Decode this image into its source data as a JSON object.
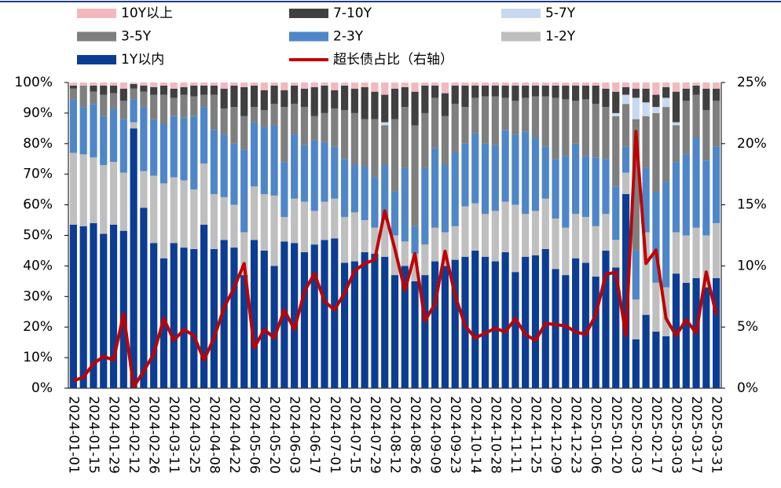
{
  "chart_data": {
    "type": "bar",
    "stacked": true,
    "categories": [
      "2024-01-01",
      null,
      "2024-01-15",
      null,
      "2024-01-29",
      null,
      "2024-02-12",
      null,
      "2024-02-26",
      null,
      "2024-03-11",
      null,
      "2024-03-25",
      null,
      "2024-04-08",
      null,
      "2024-04-22",
      null,
      "2024-05-06",
      null,
      "2024-05-20",
      null,
      "2024-06-03",
      null,
      "2024-06-17",
      null,
      "2024-07-01",
      null,
      "2024-07-15",
      null,
      "2024-07-29",
      null,
      "2024-08-12",
      null,
      "2024-08-26",
      null,
      "2024-09-09",
      null,
      "2024-09-23",
      null,
      "2024-10-14",
      null,
      "2024-10-28",
      null,
      "2024-11-11",
      null,
      "2024-11-25",
      null,
      "2024-12-09",
      null,
      "2024-12-23",
      null,
      "2025-01-06",
      null,
      "2025-01-20",
      null,
      "2025-02-03",
      null,
      "2025-02-17",
      null,
      "2025-03-03",
      null,
      "2025-03-17",
      null,
      "2025-03-31"
    ],
    "series": [
      {
        "name": "1Y以内",
        "color": "#0d3d92",
        "values": [
          53.5,
          53,
          54,
          50.5,
          53.5,
          51.5,
          85,
          59,
          47.5,
          42.5,
          47.5,
          46,
          45.5,
          53.5,
          45.5,
          48.5,
          46,
          37,
          48.5,
          45,
          40,
          48,
          47.5,
          44.5,
          47,
          48.5,
          49,
          41,
          41.5,
          44.5,
          44,
          43,
          37,
          40,
          35,
          37,
          41.5,
          40,
          42,
          43,
          45,
          43,
          41.5,
          44.5,
          38,
          43,
          43.5,
          45.5,
          39,
          37,
          42.5,
          41,
          36.5,
          45,
          39.5,
          63.5,
          16,
          24,
          18.5,
          17,
          37.5,
          34.5,
          36,
          33,
          36
        ]
      },
      {
        "name": "1-2Y",
        "color": "#bfbfbf",
        "values": [
          23.5,
          23.5,
          21.5,
          22.5,
          20.5,
          19,
          2,
          12,
          22,
          24.5,
          21.5,
          22,
          19.5,
          20,
          18,
          14,
          14,
          14,
          17.5,
          18.5,
          23,
          8,
          14.5,
          16.5,
          11,
          12.5,
          13,
          15,
          16,
          10.5,
          8.5,
          12,
          13,
          8,
          9,
          10,
          11,
          11,
          11,
          16.5,
          15.5,
          14,
          16.5,
          16.5,
          22,
          14,
          14.5,
          16.5,
          16.5,
          15.5,
          14.5,
          15,
          16.5,
          12,
          9,
          7,
          13,
          27,
          16,
          16,
          13.5,
          15.5,
          16.5,
          17,
          18
        ]
      },
      {
        "name": "2-3Y",
        "color": "#4f86c8",
        "values": [
          17.5,
          15.5,
          17.5,
          16,
          17.5,
          17.5,
          7.5,
          21,
          18.5,
          19.5,
          20,
          20.5,
          24,
          18.5,
          21,
          20.5,
          20,
          27,
          21,
          22,
          23,
          18,
          21,
          18.5,
          23,
          19.5,
          17,
          19,
          15.5,
          17.5,
          16.5,
          18,
          14.5,
          24,
          9,
          25,
          26,
          22,
          24,
          20.5,
          23,
          23,
          21.5,
          23.5,
          23,
          27,
          24,
          17,
          19.5,
          23.5,
          23,
          20,
          22.5,
          18,
          17.5,
          8.5,
          16,
          21,
          29.5,
          34.5,
          23,
          26.5,
          29.5,
          24.5,
          25
        ]
      },
      {
        "name": "3-5Y",
        "color": "#7f7f7f",
        "values": [
          3.5,
          7,
          4,
          7,
          5,
          6,
          3.5,
          5,
          8,
          9.5,
          6,
          7.5,
          6.5,
          4,
          11.5,
          8.5,
          12,
          11,
          5,
          5.5,
          7,
          18,
          10,
          12.5,
          8,
          9.5,
          12.5,
          16,
          17,
          15.5,
          19,
          13,
          23.5,
          20,
          33,
          18,
          16.5,
          16,
          16,
          12,
          11.5,
          15.5,
          16,
          10.5,
          11,
          11,
          13.5,
          16.5,
          20,
          18.5,
          14,
          18.5,
          17.5,
          17,
          23,
          14,
          43,
          17,
          26,
          24.5,
          12,
          17.5,
          14,
          16.5,
          15
        ]
      },
      {
        "name": "5-7Y",
        "color": "#c6d9f1",
        "values": [
          0,
          0,
          0,
          0,
          0,
          0,
          0,
          0,
          0,
          0,
          0,
          0,
          0,
          0,
          0,
          0,
          0,
          0,
          0,
          0,
          0,
          0,
          0,
          0,
          0,
          0,
          0,
          0,
          0,
          0,
          0,
          1,
          0,
          0,
          0,
          0,
          0,
          0,
          0,
          0,
          0,
          0,
          0,
          0,
          0,
          0,
          0,
          0,
          0,
          0,
          0,
          0,
          0,
          0,
          1,
          3,
          7,
          4.5,
          2,
          3,
          1,
          0,
          0,
          0,
          0
        ]
      },
      {
        "name": "7-10Y",
        "color": "#404040",
        "values": [
          1,
          0,
          2,
          3,
          2.5,
          4,
          1.5,
          2,
          2.5,
          3,
          3,
          2.5,
          3.5,
          3,
          3,
          6.5,
          7,
          9.5,
          7,
          6.5,
          6,
          5.5,
          6,
          6,
          9.5,
          9,
          6,
          8,
          8,
          10.5,
          9,
          9,
          10,
          6.5,
          11,
          9,
          4,
          7.5,
          6,
          7,
          4,
          3.5,
          3.5,
          4,
          5,
          4,
          3.5,
          3.5,
          4,
          4.5,
          5,
          4.5,
          6,
          6,
          7,
          2.5,
          3,
          4.5,
          4,
          3.5,
          10,
          4,
          3,
          7,
          4
        ]
      },
      {
        "name": "10Y以上",
        "color": "#f2b8bd",
        "values": [
          1,
          1,
          1,
          1,
          1,
          2,
          0.5,
          1,
          1.5,
          1,
          2,
          1.5,
          1,
          1,
          1,
          2,
          1,
          1.5,
          1,
          2.5,
          1,
          2.5,
          1,
          2,
          1.5,
          1,
          2.5,
          1,
          2,
          1.5,
          3,
          4,
          2,
          1.5,
          3,
          1,
          1,
          3.5,
          1,
          1,
          1,
          1,
          1,
          1,
          1,
          1,
          1,
          1,
          1,
          1,
          1,
          1,
          1,
          2,
          3,
          1.5,
          2,
          2,
          4,
          1.5,
          3,
          2,
          1,
          2,
          2
        ]
      },
      {
        "name": "超长债占比（右轴）",
        "type": "line",
        "axis": "y2",
        "color": "#c00000",
        "values": [
          0.6,
          0.9,
          2.0,
          2.6,
          2.3,
          6.1,
          0.1,
          1.4,
          2.8,
          5.7,
          3.9,
          4.8,
          4.3,
          2.3,
          4.1,
          6.6,
          8.2,
          10.2,
          3.3,
          4.8,
          4.1,
          6.4,
          4.8,
          7.9,
          9.4,
          7.1,
          6.4,
          7.8,
          9.6,
          10.2,
          10.5,
          14.5,
          11.4,
          8.0,
          11.0,
          5.5,
          6.9,
          11.2,
          7.6,
          5.1,
          4.1,
          4.5,
          4.9,
          4.6,
          5.7,
          4.4,
          3.9,
          5.3,
          5.2,
          5.1,
          4.6,
          4.4,
          6.0,
          9.3,
          9.5,
          4.3,
          21.0,
          10.2,
          11.3,
          5.7,
          4.3,
          5.6,
          4.5,
          9.5,
          6.0
        ]
      }
    ],
    "ylim": [
      0,
      100
    ],
    "yticks": [
      {
        "value": 0,
        "label": "0%"
      },
      {
        "value": 10,
        "label": "10%"
      },
      {
        "value": 20,
        "label": "20%"
      },
      {
        "value": 30,
        "label": "30%"
      },
      {
        "value": 40,
        "label": "40%"
      },
      {
        "value": 50,
        "label": "50%"
      },
      {
        "value": 60,
        "label": "60%"
      },
      {
        "value": 70,
        "label": "70%"
      },
      {
        "value": 80,
        "label": "80%"
      },
      {
        "value": 90,
        "label": "90%"
      },
      {
        "value": 100,
        "label": "100%"
      }
    ],
    "y2lim": [
      0,
      25
    ],
    "y2ticks": [
      {
        "value": 0,
        "label": "0%"
      },
      {
        "value": 5,
        "label": "5%"
      },
      {
        "value": 10,
        "label": "10%"
      },
      {
        "value": 15,
        "label": "15%"
      },
      {
        "value": 20,
        "label": "20%"
      },
      {
        "value": 25,
        "label": "25%"
      }
    ],
    "legend": "top"
  }
}
